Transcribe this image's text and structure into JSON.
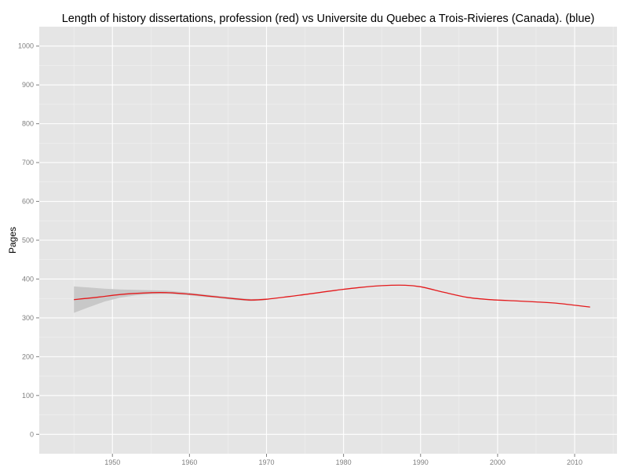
{
  "chart_data": {
    "type": "line",
    "title": "Length of history dissertations, profession (red) vs Universite du Quebec a Trois-Rivieres (Canada). (blue)",
    "xlabel": "",
    "ylabel": "Pages",
    "xlim": [
      1940.5,
      2015.5
    ],
    "ylim": [
      -50,
      1050
    ],
    "x_ticks": [
      1950,
      1960,
      1970,
      1980,
      1990,
      2000,
      2010
    ],
    "y_ticks": [
      0,
      100,
      200,
      300,
      400,
      500,
      600,
      700,
      800,
      900,
      1000
    ],
    "grid": true,
    "background": "#e5e5e5",
    "series": [
      {
        "color": "#e41a1c",
        "x": [
          1945,
          1948,
          1951,
          1954,
          1957,
          1960,
          1963,
          1966,
          1968,
          1970,
          1973,
          1976,
          1979,
          1982,
          1985,
          1988,
          1990,
          1993,
          1996,
          1999,
          2002,
          2005,
          2008,
          2012
        ],
        "y": [
          347,
          353,
          360,
          364,
          365,
          361,
          355,
          349,
          346,
          348,
          355,
          363,
          371,
          378,
          383,
          384,
          380,
          366,
          353,
          347,
          344,
          341,
          337,
          328
        ]
      }
    ],
    "confidence_band": {
      "color": "#c8c8c8",
      "x": [
        1945,
        1947,
        1949,
        1951,
        1953,
        1955,
        1957,
        1960,
        1963,
        1966,
        1968,
        1970
      ],
      "upper": [
        381,
        378,
        375,
        373,
        372,
        371,
        370,
        365,
        358,
        352,
        349,
        350
      ],
      "lower": [
        313,
        328,
        342,
        352,
        358,
        361,
        362,
        358,
        352,
        346,
        343,
        346
      ]
    }
  }
}
